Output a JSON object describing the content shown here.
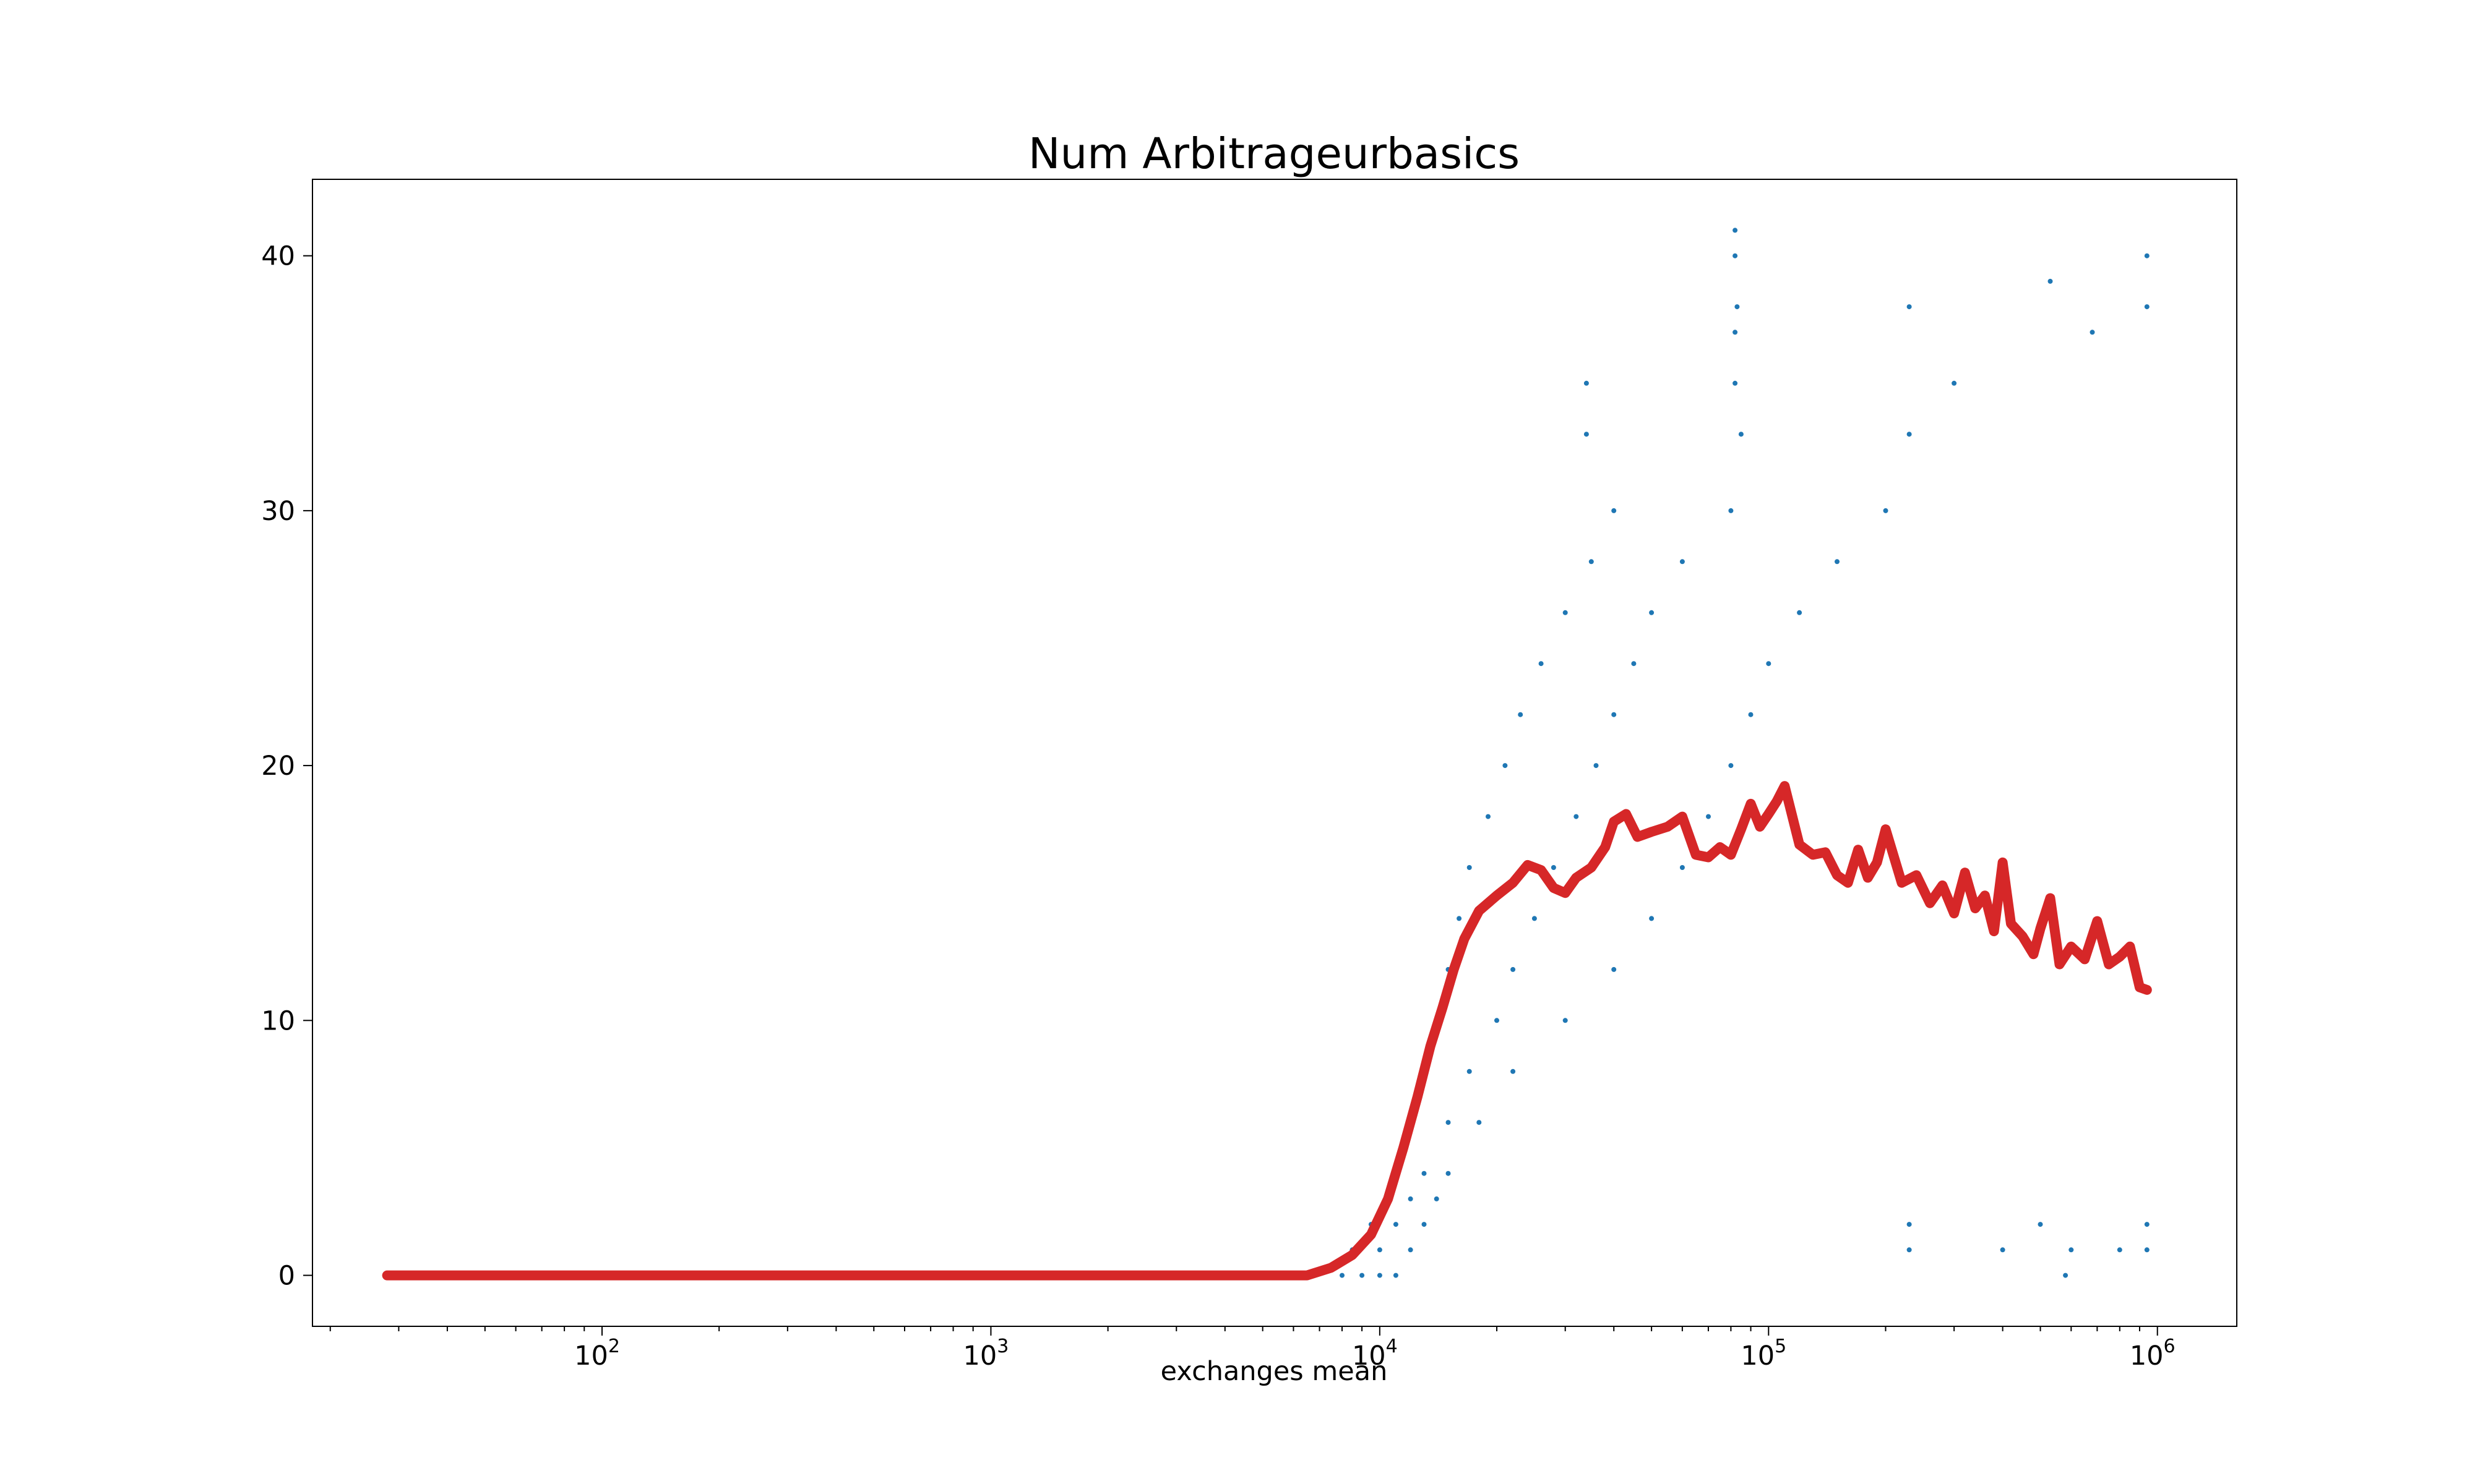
{
  "chart_data": {
    "type": "scatter",
    "title": "Num Arbitrageurbasics",
    "xlabel": "exchanges mean",
    "ylabel": "",
    "xscale": "log",
    "xlim": [
      18,
      1600000
    ],
    "ylim": [
      -2,
      43
    ],
    "grid": false,
    "legend": "none",
    "x_ticks": [
      {
        "value": 100,
        "base": "10",
        "exp": "2"
      },
      {
        "value": 1000,
        "base": "10",
        "exp": "3"
      },
      {
        "value": 10000,
        "base": "10",
        "exp": "4"
      },
      {
        "value": 100000,
        "base": "10",
        "exp": "5"
      },
      {
        "value": 1000000,
        "base": "10",
        "exp": "6"
      }
    ],
    "y_ticks": [
      {
        "value": 0,
        "label": "0"
      },
      {
        "value": 10,
        "label": "10"
      },
      {
        "value": 20,
        "label": "20"
      },
      {
        "value": 30,
        "label": "30"
      },
      {
        "value": 40,
        "label": "40"
      }
    ],
    "series": [
      {
        "kind": "scatter",
        "color": "#1f77b4",
        "points": [
          [
            8000,
            0
          ],
          [
            9000,
            0
          ],
          [
            10000,
            0
          ],
          [
            11000,
            0
          ],
          [
            8500,
            1
          ],
          [
            10000,
            1
          ],
          [
            12000,
            1
          ],
          [
            9500,
            2
          ],
          [
            11000,
            2
          ],
          [
            13000,
            2
          ],
          [
            10500,
            3
          ],
          [
            12000,
            3
          ],
          [
            14000,
            3
          ],
          [
            11000,
            4
          ],
          [
            13000,
            4
          ],
          [
            15000,
            4
          ],
          [
            12000,
            6
          ],
          [
            15000,
            6
          ],
          [
            18000,
            6
          ],
          [
            13000,
            8
          ],
          [
            17000,
            8
          ],
          [
            22000,
            8
          ],
          [
            14000,
            10
          ],
          [
            20000,
            10
          ],
          [
            30000,
            10
          ],
          [
            15000,
            12
          ],
          [
            22000,
            12
          ],
          [
            40000,
            12
          ],
          [
            16000,
            14
          ],
          [
            25000,
            14
          ],
          [
            50000,
            14
          ],
          [
            17000,
            16
          ],
          [
            28000,
            16
          ],
          [
            60000,
            16
          ],
          [
            19000,
            18
          ],
          [
            32000,
            18
          ],
          [
            70000,
            18
          ],
          [
            21000,
            20
          ],
          [
            36000,
            20
          ],
          [
            80000,
            20
          ],
          [
            23000,
            22
          ],
          [
            40000,
            22
          ],
          [
            90000,
            22
          ],
          [
            26000,
            24
          ],
          [
            45000,
            24
          ],
          [
            100000,
            24
          ],
          [
            30000,
            26
          ],
          [
            50000,
            26
          ],
          [
            120000,
            26
          ],
          [
            35000,
            28
          ],
          [
            60000,
            28
          ],
          [
            150000,
            28
          ],
          [
            40000,
            30
          ],
          [
            80000,
            30
          ],
          [
            200000,
            30
          ],
          [
            34000,
            33
          ],
          [
            85000,
            33
          ],
          [
            230000,
            33
          ],
          [
            34000,
            35
          ],
          [
            82000,
            35
          ],
          [
            300000,
            35
          ],
          [
            82000,
            37
          ],
          [
            83000,
            38
          ],
          [
            230000,
            38
          ],
          [
            82000,
            40
          ],
          [
            82000,
            41
          ],
          [
            940000,
            40
          ],
          [
            230000,
            1
          ],
          [
            400000,
            1
          ],
          [
            600000,
            1
          ],
          [
            800000,
            1
          ],
          [
            940000,
            1
          ],
          [
            580000,
            0
          ],
          [
            230000,
            2
          ],
          [
            500000,
            2
          ],
          [
            940000,
            2
          ],
          [
            530000,
            39
          ],
          [
            680000,
            37
          ],
          [
            940000,
            38
          ]
        ]
      },
      {
        "kind": "line",
        "color": "#d62728",
        "points": [
          [
            28,
            0
          ],
          [
            100,
            0
          ],
          [
            1000,
            0
          ],
          [
            5000,
            0
          ],
          [
            6500,
            0
          ],
          [
            7500,
            0.3
          ],
          [
            8500,
            0.8
          ],
          [
            9500,
            1.6
          ],
          [
            10500,
            3
          ],
          [
            11500,
            5
          ],
          [
            12500,
            7
          ],
          [
            13500,
            9
          ],
          [
            14500,
            10.5
          ],
          [
            15500,
            12
          ],
          [
            16500,
            13.2
          ],
          [
            18000,
            14.3
          ],
          [
            20000,
            14.9
          ],
          [
            22000,
            15.4
          ],
          [
            24000,
            16.1
          ],
          [
            26000,
            15.9
          ],
          [
            28000,
            15.2
          ],
          [
            30000,
            15
          ],
          [
            32000,
            15.6
          ],
          [
            35000,
            16
          ],
          [
            38000,
            16.8
          ],
          [
            40000,
            17.8
          ],
          [
            43000,
            18.1
          ],
          [
            46000,
            17.2
          ],
          [
            50000,
            17.4
          ],
          [
            55000,
            17.6
          ],
          [
            60000,
            18
          ],
          [
            65000,
            16.5
          ],
          [
            70000,
            16.4
          ],
          [
            75000,
            16.8
          ],
          [
            80000,
            16.5
          ],
          [
            85000,
            17.5
          ],
          [
            90000,
            18.5
          ],
          [
            95000,
            17.6
          ],
          [
            100000,
            18.1
          ],
          [
            105000,
            18.6
          ],
          [
            110000,
            19.2
          ],
          [
            120000,
            16.9
          ],
          [
            130000,
            16.5
          ],
          [
            140000,
            16.6
          ],
          [
            150000,
            15.7
          ],
          [
            160000,
            15.4
          ],
          [
            170000,
            16.7
          ],
          [
            180000,
            15.6
          ],
          [
            190000,
            16.2
          ],
          [
            200000,
            17.5
          ],
          [
            220000,
            15.4
          ],
          [
            240000,
            15.7
          ],
          [
            260000,
            14.6
          ],
          [
            280000,
            15.3
          ],
          [
            300000,
            14.2
          ],
          [
            320000,
            15.8
          ],
          [
            340000,
            14.4
          ],
          [
            360000,
            14.9
          ],
          [
            380000,
            13.5
          ],
          [
            400000,
            16.2
          ],
          [
            420000,
            13.8
          ],
          [
            450000,
            13.3
          ],
          [
            480000,
            12.6
          ],
          [
            500000,
            13.6
          ],
          [
            530000,
            14.8
          ],
          [
            560000,
            12.2
          ],
          [
            600000,
            12.9
          ],
          [
            650000,
            12.4
          ],
          [
            700000,
            13.9
          ],
          [
            750000,
            12.2
          ],
          [
            800000,
            12.5
          ],
          [
            850000,
            12.9
          ],
          [
            900000,
            11.3
          ],
          [
            940000,
            11.2
          ]
        ]
      }
    ]
  }
}
